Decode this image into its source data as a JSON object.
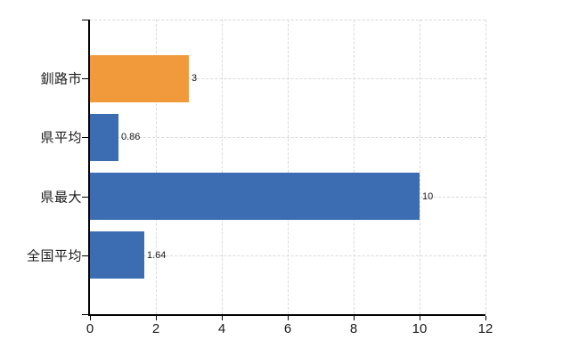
{
  "chart_data": {
    "type": "bar",
    "orientation": "horizontal",
    "title": "",
    "xlabel": "",
    "ylabel": "",
    "categories": [
      "釧路市",
      "県平均",
      "県最大",
      "全国平均"
    ],
    "values": [
      3,
      0.86,
      10,
      1.64
    ],
    "value_labels": [
      "3",
      "0.86",
      "10",
      "1.64"
    ],
    "bar_colors": [
      "#f09a3c",
      "#3c6cb2",
      "#3c6cb2",
      "#3c6cb2"
    ],
    "xlim": [
      0,
      12
    ],
    "xticks": [
      0,
      2,
      4,
      6,
      8,
      10,
      12
    ],
    "xtick_labels": [
      "0",
      "2",
      "4",
      "6",
      "8",
      "10",
      "12"
    ],
    "grid": true,
    "legend": "none"
  },
  "colors": {
    "background": "#ffffff",
    "gridline": "#d9d9d9",
    "axis": "#000000",
    "text": "#1a1a1a"
  }
}
